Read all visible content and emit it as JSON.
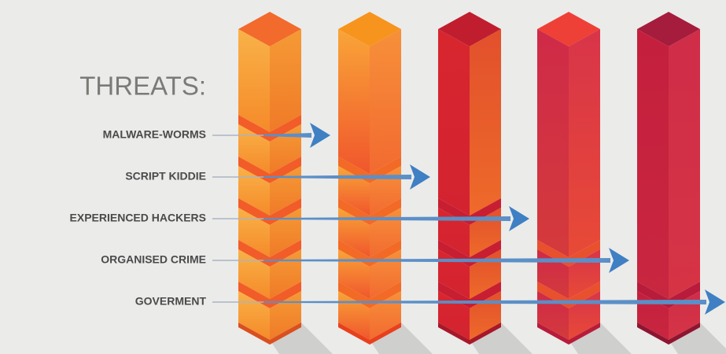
{
  "title": "THREATS:",
  "threats": [
    "MALWARE-WORMS",
    "SCRIPT KIDDIE",
    "EXPERIENCED HACKERS",
    "ORGANISED CRIME",
    "GOVERMENT"
  ]
}
